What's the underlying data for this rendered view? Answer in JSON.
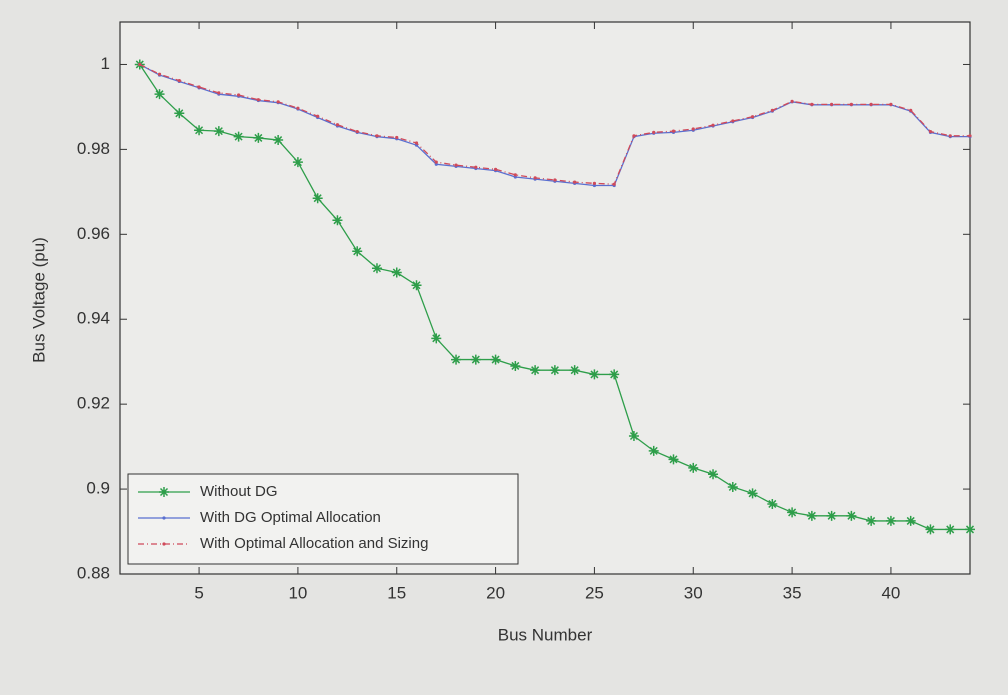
{
  "chart_data": {
    "type": "line",
    "x": [
      2,
      3,
      4,
      5,
      6,
      7,
      8,
      9,
      10,
      11,
      12,
      13,
      14,
      15,
      16,
      17,
      18,
      19,
      20,
      21,
      22,
      23,
      24,
      25,
      26,
      27,
      28,
      29,
      30,
      31,
      32,
      33,
      34,
      35,
      36,
      37,
      38,
      39,
      40,
      41,
      42,
      43,
      44
    ],
    "xlabel": "Bus Number",
    "ylabel": "Bus Voltage (pu)",
    "xlim": [
      1,
      44
    ],
    "ylim": [
      0.88,
      1.01
    ],
    "xticks": [
      5,
      10,
      15,
      20,
      25,
      30,
      35,
      40
    ],
    "yticks": [
      0.88,
      0.9,
      0.92,
      0.94,
      0.96,
      0.98,
      1
    ],
    "legend": "lower-left",
    "series": [
      {
        "name": "Without DG",
        "color": "#2e9e4a",
        "marker": "star",
        "values": [
          1.0,
          0.993,
          0.9885,
          0.9845,
          0.9843,
          0.983,
          0.9827,
          0.9822,
          0.977,
          0.9685,
          0.9633,
          0.956,
          0.952,
          0.951,
          0.948,
          0.9355,
          0.9305,
          0.9305,
          0.9305,
          0.929,
          0.928,
          0.928,
          0.928,
          0.927,
          0.927,
          0.9125,
          0.909,
          0.907,
          0.905,
          0.9035,
          0.9005,
          0.899,
          0.8965,
          0.8945,
          0.8937,
          0.8937,
          0.8937,
          0.8925,
          0.8925,
          0.8925,
          0.8905,
          0.8905,
          0.8905
        ]
      },
      {
        "name": "With DG Optimal Allocation",
        "color": "#5a6fd0",
        "marker": "dot",
        "values": [
          1.0,
          0.9975,
          0.996,
          0.9945,
          0.993,
          0.9925,
          0.9915,
          0.991,
          0.9895,
          0.9875,
          0.9855,
          0.984,
          0.983,
          0.9825,
          0.981,
          0.9765,
          0.976,
          0.9755,
          0.975,
          0.9735,
          0.973,
          0.9725,
          0.972,
          0.9715,
          0.9715,
          0.983,
          0.9838,
          0.984,
          0.9845,
          0.9855,
          0.9865,
          0.9875,
          0.989,
          0.9912,
          0.9905,
          0.9905,
          0.9905,
          0.9905,
          0.9905,
          0.989,
          0.984,
          0.983,
          0.983
        ]
      },
      {
        "name": "With Optimal Allocation and Sizing",
        "color": "#d04a5a",
        "marker": "dashdot",
        "values": [
          1.0,
          0.9977,
          0.9962,
          0.9947,
          0.9933,
          0.9928,
          0.9917,
          0.9912,
          0.9897,
          0.9878,
          0.9858,
          0.9842,
          0.9832,
          0.9828,
          0.9815,
          0.977,
          0.9763,
          0.9758,
          0.9753,
          0.974,
          0.9733,
          0.9728,
          0.9723,
          0.972,
          0.9718,
          0.9832,
          0.984,
          0.9843,
          0.9848,
          0.9857,
          0.9867,
          0.9877,
          0.9892,
          0.9913,
          0.9906,
          0.9906,
          0.9906,
          0.9906,
          0.9906,
          0.9892,
          0.9842,
          0.9832,
          0.9832
        ]
      }
    ]
  }
}
